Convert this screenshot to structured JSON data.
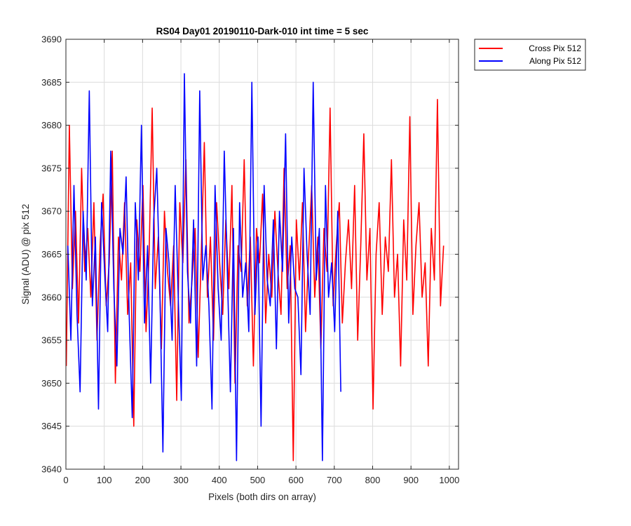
{
  "chart_data": {
    "type": "line",
    "title": "RS04 Day01 20190110-Dark-010 int time = 5 sec",
    "xlabel": "Pixels (both dirs on array)",
    "ylabel": "Signal (ADU) @ pix 512",
    "xlim": [
      0,
      1024
    ],
    "ylim": [
      3640,
      3690
    ],
    "xticks": [
      0,
      100,
      200,
      300,
      400,
      500,
      600,
      700,
      800,
      900,
      1000
    ],
    "yticks": [
      3640,
      3645,
      3650,
      3655,
      3660,
      3665,
      3670,
      3675,
      3680,
      3685,
      3690
    ],
    "grid": true,
    "legend_position": "outside-top-right",
    "series": [
      {
        "name": "Cross Pix 512",
        "color": "#ff0000",
        "x_start": 1,
        "x_step": 8,
        "values": [
          3652,
          3680,
          3661,
          3670,
          3657,
          3675,
          3663,
          3668,
          3660,
          3671,
          3655,
          3666,
          3672,
          3659,
          3664,
          3677,
          3650,
          3667,
          3662,
          3671,
          3658,
          3664,
          3645,
          3669,
          3663,
          3673,
          3656,
          3665,
          3682,
          3661,
          3667,
          3654,
          3670,
          3663,
          3659,
          3666,
          3648,
          3671,
          3664,
          3676,
          3657,
          3662,
          3668,
          3653,
          3665,
          3678,
          3660,
          3667,
          3655,
          3671,
          3664,
          3658,
          3669,
          3661,
          3673,
          3650,
          3666,
          3663,
          3676,
          3659,
          3667,
          3652,
          3668,
          3664,
          3672,
          3657,
          3665,
          3660,
          3670,
          3663,
          3658,
          3675,
          3661,
          3666,
          3641,
          3669,
          3662,
          3671,
          3656,
          3665,
          3673,
          3660,
          3667,
          3654,
          3668,
          3663,
          3682,
          3659,
          3666,
          3671,
          3657,
          3664,
          3669,
          3661,
          3673,
          3655,
          3666,
          3679,
          3662,
          3668,
          3647,
          3665,
          3671,
          3658,
          3667,
          3663,
          3676,
          3660,
          3665,
          3652,
          3669,
          3662,
          3681,
          3658,
          3666,
          3671,
          3660,
          3664,
          3652,
          3668,
          3662,
          3683,
          3659,
          3666
        ]
      },
      {
        "name": "Along Pix 512",
        "color": "#0000ff",
        "x_start": 5,
        "x_step": 8,
        "values": [
          3666,
          3655,
          3673,
          3658,
          3649,
          3670,
          3662,
          3684,
          3659,
          3667,
          3647,
          3671,
          3663,
          3656,
          3677,
          3661,
          3652,
          3668,
          3665,
          3674,
          3658,
          3646,
          3671,
          3662,
          3680,
          3657,
          3666,
          3650,
          3669,
          3675,
          3661,
          3642,
          3668,
          3664,
          3655,
          3673,
          3660,
          3648,
          3686,
          3663,
          3657,
          3669,
          3652,
          3684,
          3662,
          3666,
          3659,
          3647,
          3673,
          3661,
          3655,
          3677,
          3663,
          3649,
          3668,
          3641,
          3671,
          3660,
          3664,
          3656,
          3685,
          3658,
          3667,
          3645,
          3673,
          3662,
          3659,
          3669,
          3654,
          3670,
          3663,
          3679,
          3657,
          3667,
          3661,
          3660,
          3651,
          3675,
          3665,
          3658,
          3685,
          3662,
          3668,
          3641,
          3673,
          3660,
          3664,
          3656,
          3670,
          3649
        ]
      }
    ]
  }
}
